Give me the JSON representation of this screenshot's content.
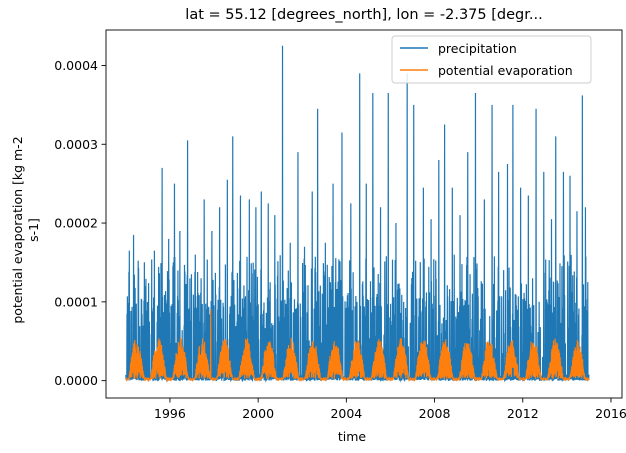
{
  "chart_data": {
    "type": "line",
    "title": "lat = 55.12 [degrees_north], lon = -2.375 [degr...",
    "xlabel": "time",
    "ylabel_lines": [
      "potential evaporation [kg m-2",
      "s-1]"
    ],
    "xlim": [
      1993.1,
      2016.5
    ],
    "ylim": [
      -2.2e-05,
      0.000445
    ],
    "x_ticks": [
      1996,
      2000,
      2004,
      2008,
      2012,
      2016
    ],
    "x_tick_labels": [
      "1996",
      "2000",
      "2004",
      "2008",
      "2012",
      "2016"
    ],
    "y_ticks": [
      0,
      0.0001,
      0.0002,
      0.0003,
      0.0004
    ],
    "y_tick_labels": [
      "0.0000",
      "0.0001",
      "0.0002",
      "0.0003",
      "0.0004"
    ],
    "grid": false,
    "legend": {
      "placement": "top-right",
      "entries": [
        "precipitation",
        "potential evaporation"
      ]
    },
    "series": [
      {
        "name": "precipitation",
        "color": "#1f77b4",
        "x_start": 1994.0,
        "x_end": 2015.0,
        "peaks": [
          [
            1994.15,
            0.000165
          ],
          [
            1994.35,
            0.000185
          ],
          [
            1994.85,
            0.00012
          ],
          [
            1995.3,
            0.000165
          ],
          [
            1995.65,
            0.00027
          ],
          [
            1995.95,
            0.00018
          ],
          [
            1996.2,
            0.00025
          ],
          [
            1996.45,
            0.00019
          ],
          [
            1996.8,
            0.000305
          ],
          [
            1997.15,
            0.00016
          ],
          [
            1997.55,
            0.00023
          ],
          [
            1997.9,
            0.00019
          ],
          [
            1998.25,
            0.00022
          ],
          [
            1998.6,
            0.000255
          ],
          [
            1998.85,
            0.00031
          ],
          [
            1999.2,
            0.000235
          ],
          [
            1999.6,
            0.00023
          ],
          [
            1999.9,
            0.00022
          ],
          [
            2000.15,
            0.00024
          ],
          [
            2000.45,
            0.000225
          ],
          [
            2000.75,
            0.00021
          ],
          [
            2001.1,
            0.000425
          ],
          [
            2001.45,
            0.000175
          ],
          [
            2001.8,
            0.00029
          ],
          [
            2002.1,
            0.00017
          ],
          [
            2002.45,
            0.00024
          ],
          [
            2002.7,
            0.000345
          ],
          [
            2003.05,
            0.000175
          ],
          [
            2003.4,
            0.00025
          ],
          [
            2003.8,
            0.000315
          ],
          [
            2004.2,
            0.000225
          ],
          [
            2004.6,
            0.00039
          ],
          [
            2004.9,
            0.00025
          ],
          [
            2005.2,
            0.000365
          ],
          [
            2005.55,
            0.00022
          ],
          [
            2005.9,
            0.000365
          ],
          [
            2006.25,
            0.0002
          ],
          [
            2006.75,
            0.00039
          ],
          [
            2007.05,
            0.00035
          ],
          [
            2007.5,
            0.000245
          ],
          [
            2007.85,
            0.000205
          ],
          [
            2008.2,
            0.00028
          ],
          [
            2008.45,
            0.000325
          ],
          [
            2008.8,
            0.000245
          ],
          [
            2009.15,
            0.00021
          ],
          [
            2009.5,
            0.00029
          ],
          [
            2009.85,
            0.000365
          ],
          [
            2010.25,
            0.00023
          ],
          [
            2010.6,
            0.00035
          ],
          [
            2010.9,
            0.000265
          ],
          [
            2011.3,
            0.000275
          ],
          [
            2011.55,
            0.00035
          ],
          [
            2011.9,
            0.000245
          ],
          [
            2012.25,
            0.000235
          ],
          [
            2012.6,
            0.000345
          ],
          [
            2012.95,
            0.000265
          ],
          [
            2013.3,
            0.000205
          ],
          [
            2013.5,
            0.00031
          ],
          [
            2013.85,
            0.000265
          ],
          [
            2014.15,
            0.00026
          ],
          [
            2014.45,
            0.000215
          ],
          [
            2014.7,
            0.000362
          ],
          [
            2014.85,
            0.00022
          ],
          [
            2014.95,
            0.000125
          ]
        ]
      },
      {
        "name": "potential evaporation",
        "color": "#ff7f0e",
        "x_start": 1994.0,
        "x_end": 2015.0,
        "seasonal_min": 2e-06,
        "seasonal_max": 5.5e-05,
        "spike": [
          1997.85,
          9e-05
        ]
      }
    ]
  }
}
